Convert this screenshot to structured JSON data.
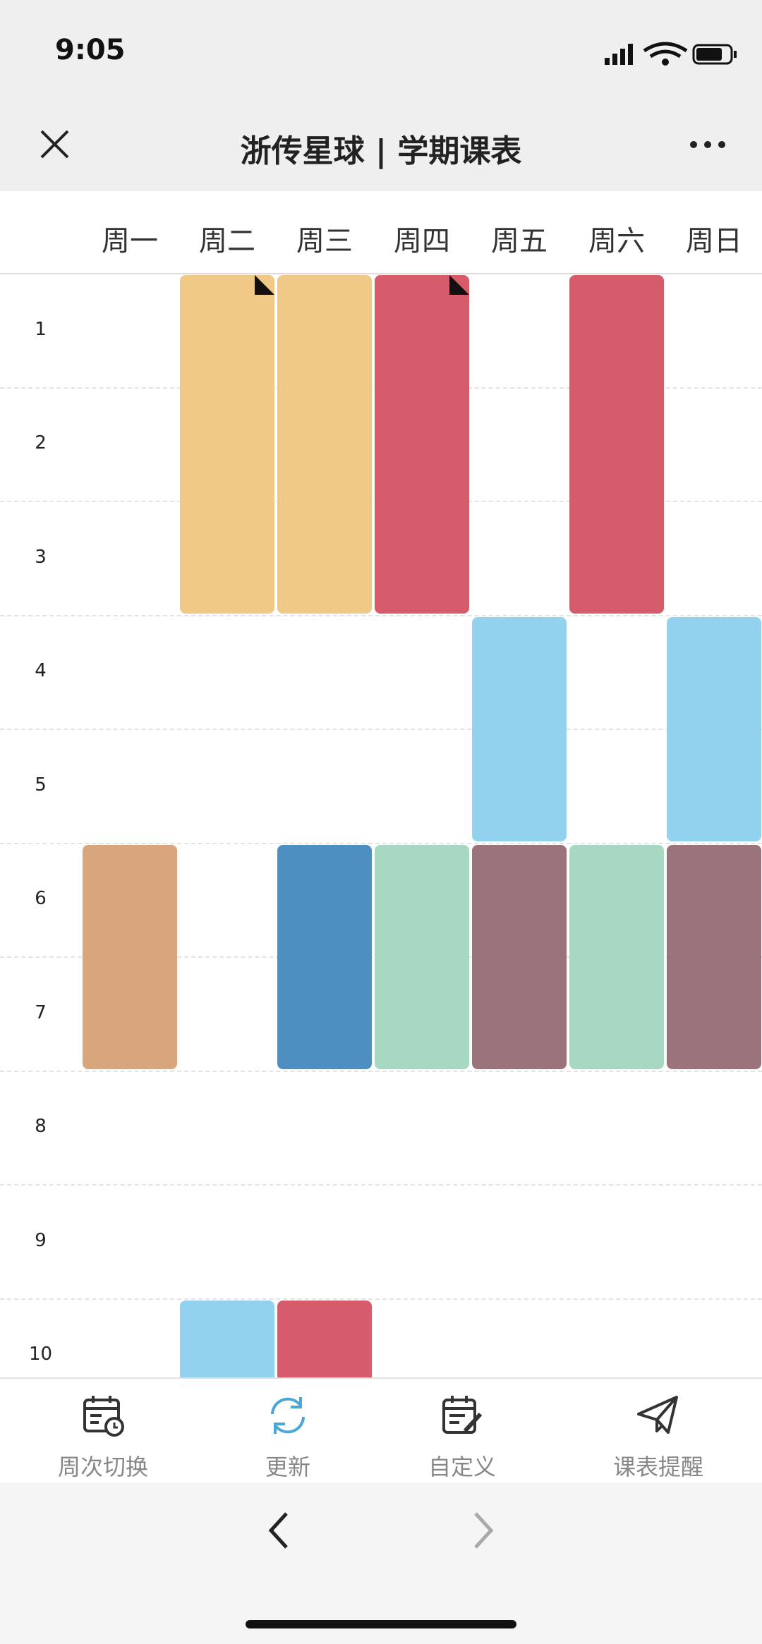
{
  "status": {
    "time": "9:05"
  },
  "header": {
    "title": "浙传星球 | 学期课表"
  },
  "days": [
    "周一",
    "周二",
    "周三",
    "周四",
    "周五",
    "周六",
    "周日"
  ],
  "periods": [
    1,
    2,
    3,
    4,
    5,
    6,
    7,
    8,
    9,
    10
  ],
  "courses": [
    {
      "day": "周二",
      "start": 1,
      "end": 3,
      "color": "#f0c987",
      "flag": true
    },
    {
      "day": "周三",
      "start": 1,
      "end": 3,
      "color": "#f0c987",
      "flag": false
    },
    {
      "day": "周四",
      "start": 1,
      "end": 3,
      "color": "#d65c6c",
      "flag": true
    },
    {
      "day": "周六",
      "start": 1,
      "end": 3,
      "color": "#d65c6c",
      "flag": false
    },
    {
      "day": "周五",
      "start": 4,
      "end": 5,
      "color": "#93d2ee",
      "flag": false
    },
    {
      "day": "周日",
      "start": 4,
      "end": 5,
      "color": "#93d2ee",
      "flag": false
    },
    {
      "day": "周一",
      "start": 6,
      "end": 7,
      "color": "#d9a57c",
      "flag": false
    },
    {
      "day": "周三",
      "start": 6,
      "end": 7,
      "color": "#4e8fc2",
      "flag": false
    },
    {
      "day": "周四",
      "start": 6,
      "end": 7,
      "color": "#a6d8c2",
      "flag": false
    },
    {
      "day": "周五",
      "start": 6,
      "end": 7,
      "color": "#9b737a",
      "flag": false
    },
    {
      "day": "周六",
      "start": 6,
      "end": 7,
      "color": "#a6d8c2",
      "flag": false
    },
    {
      "day": "周日",
      "start": 6,
      "end": 7,
      "color": "#9b737a",
      "flag": false
    },
    {
      "day": "周二",
      "start": 10,
      "end": 10,
      "color": "#93d2ee",
      "flag": false
    },
    {
      "day": "周三",
      "start": 10,
      "end": 10,
      "color": "#d65c6c",
      "flag": false
    }
  ],
  "toolbar": [
    {
      "label": "周次切换",
      "icon": "calendar-clock",
      "active": false
    },
    {
      "label": "更新",
      "icon": "refresh",
      "active": true
    },
    {
      "label": "自定义",
      "icon": "calendar-edit",
      "active": false
    },
    {
      "label": "课表提醒",
      "icon": "send",
      "active": false
    }
  ]
}
